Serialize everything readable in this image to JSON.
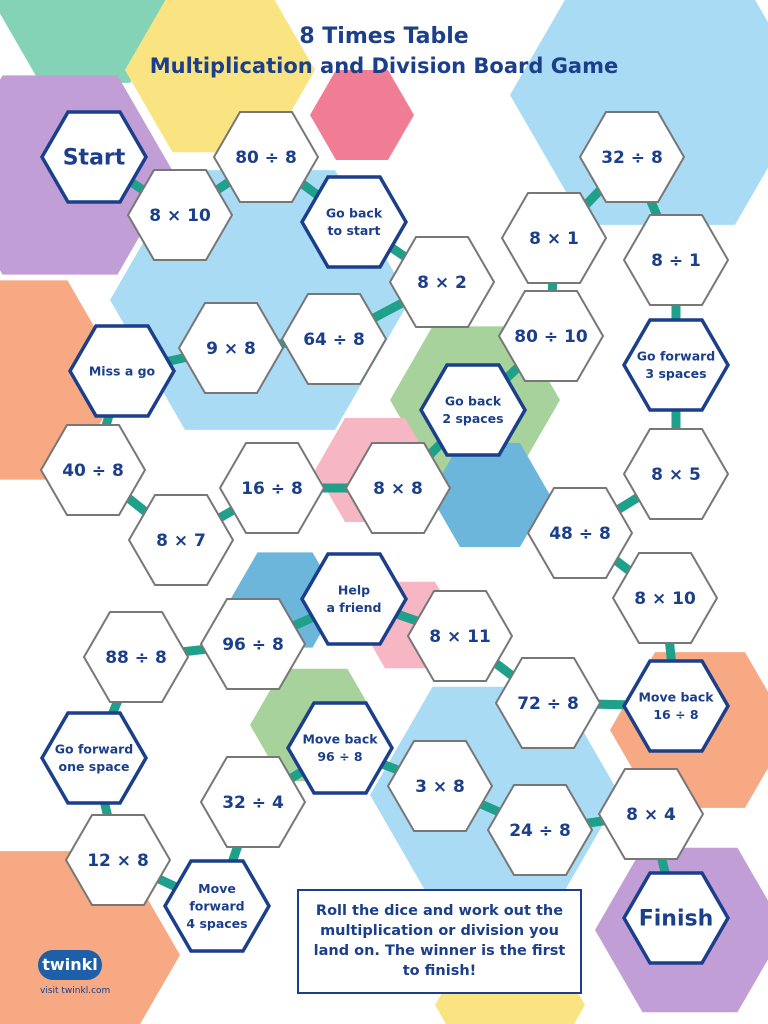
{
  "title_line1": "8 Times Table",
  "title_line2": "Multiplication and Division Board Game",
  "rules": "Roll the dice and work out the multiplication or division you land on. The winner is the first to finish!",
  "logo_text": "twinkl",
  "logo_url_text": "visit twinkl.com",
  "colors": {
    "title": "#1b3f8b",
    "special_border": "#1b3f8b",
    "normal_border": "#777777",
    "connector": "#1fa08a",
    "bg_hexes": [
      "#84d3b7",
      "#f9e481",
      "#f07d94",
      "#c29ed6",
      "#a9dcf4",
      "#f6a982",
      "#a7d29c",
      "#6cb6dc",
      "#f7b6c3"
    ]
  },
  "spaces": [
    {
      "label": "Start",
      "special": true,
      "big": true
    },
    {
      "label": "8 × 10",
      "special": false
    },
    {
      "label": "80 ÷ 8",
      "special": false
    },
    {
      "label": "Go back\nto start",
      "special": true
    },
    {
      "label": "8 × 2",
      "special": false
    },
    {
      "label": "64 ÷ 8",
      "special": false
    },
    {
      "label": "9 × 8",
      "special": false
    },
    {
      "label": "Miss a go",
      "special": true
    },
    {
      "label": "40 ÷ 8",
      "special": false
    },
    {
      "label": "8 × 7",
      "special": false
    },
    {
      "label": "16 ÷ 8",
      "special": false
    },
    {
      "label": "8 × 8",
      "special": false
    },
    {
      "label": "Go back\n2 spaces",
      "special": true
    },
    {
      "label": "80 ÷ 10",
      "special": false
    },
    {
      "label": "8 × 1",
      "special": false
    },
    {
      "label": "32 ÷ 8",
      "special": false
    },
    {
      "label": "8 ÷ 1",
      "special": false
    },
    {
      "label": "Go forward\n3 spaces",
      "special": true
    },
    {
      "label": "8 × 5",
      "special": false
    },
    {
      "label": "48 ÷ 8",
      "special": false
    },
    {
      "label": "8 × 10",
      "special": false
    },
    {
      "label": "Move back\n16 ÷ 8",
      "special": true
    },
    {
      "label": "72 ÷ 8",
      "special": false
    },
    {
      "label": "8 × 11",
      "special": false
    },
    {
      "label": "Help\na friend",
      "special": true
    },
    {
      "label": "96 ÷ 8",
      "special": false
    },
    {
      "label": "88 ÷ 8",
      "special": false
    },
    {
      "label": "Go forward\none space",
      "special": true
    },
    {
      "label": "12 × 8",
      "special": false
    },
    {
      "label": "Move\nforward\n4 spaces",
      "special": true
    },
    {
      "label": "32 ÷ 4",
      "special": false
    },
    {
      "label": "Move back\n96 ÷ 8",
      "special": true
    },
    {
      "label": "3 × 8",
      "special": false
    },
    {
      "label": "24 ÷ 8",
      "special": false
    },
    {
      "label": "8 × 4",
      "special": false
    },
    {
      "label": "Finish",
      "special": true,
      "big": true
    }
  ]
}
